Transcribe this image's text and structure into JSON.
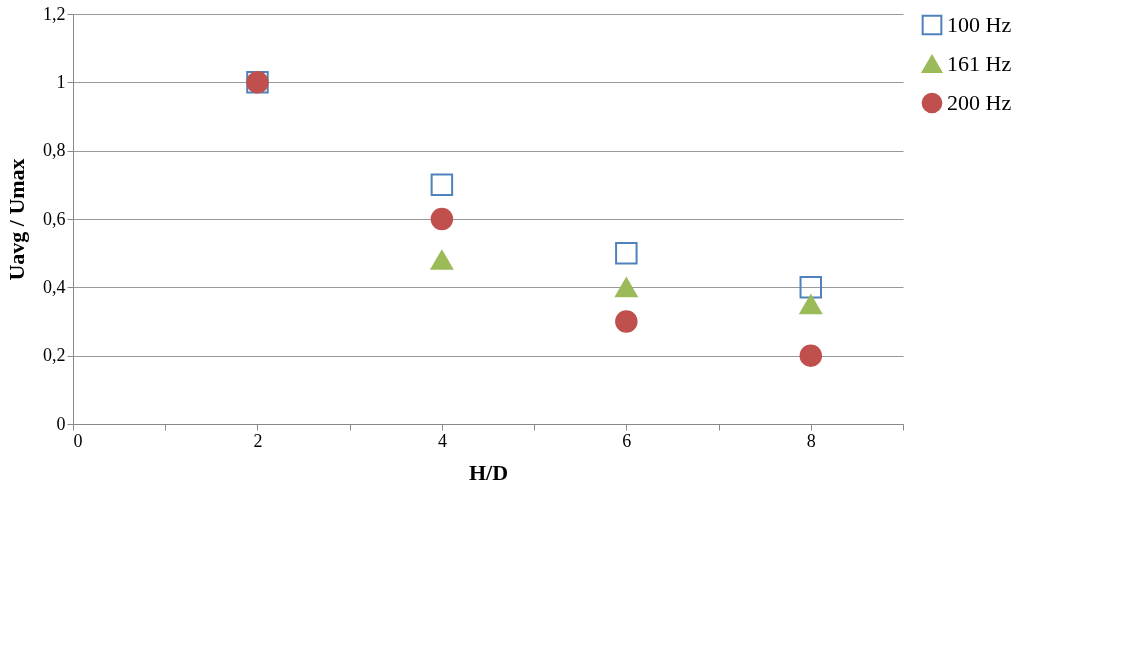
{
  "chart_data": {
    "type": "scatter",
    "xlabel": "H/D",
    "ylabel": "Uavg / Umax",
    "x": [
      2,
      4,
      6,
      8
    ],
    "series": [
      {
        "name": "100 Hz",
        "color": "#4f81bd",
        "marker": "square",
        "values": [
          1,
          0.7,
          0.5,
          0.4
        ]
      },
      {
        "name": "161 Hz",
        "color": "#9bbb59",
        "marker": "triangle",
        "values": [
          null,
          0.48,
          0.4,
          0.35
        ]
      },
      {
        "name": "200 Hz",
        "color": "#c0504d",
        "marker": "circle",
        "values": [
          1,
          0.6,
          0.3,
          0.2
        ]
      }
    ],
    "xlim": [
      0,
      9
    ],
    "xticks": [
      0,
      {
        "value": 1,
        "label": null
      },
      2,
      {
        "value": 3,
        "label": null
      },
      4,
      {
        "value": 5,
        "label": null
      },
      6,
      {
        "value": 7,
        "label": null
      },
      8,
      {
        "value": 9,
        "label": null
      }
    ],
    "ylim": [
      0,
      1.2
    ],
    "yticks": [
      {
        "value": 0,
        "label": "0"
      },
      {
        "value": 0.2,
        "label": "0,2"
      },
      {
        "value": 0.4,
        "label": "0,4"
      },
      {
        "value": 0.6,
        "label": "0,6"
      },
      {
        "value": 0.8,
        "label": "0,8"
      },
      {
        "value": 1,
        "label": "1"
      },
      {
        "value": 1.2,
        "label": "1,2"
      }
    ],
    "grid": "y",
    "legend": "right"
  }
}
